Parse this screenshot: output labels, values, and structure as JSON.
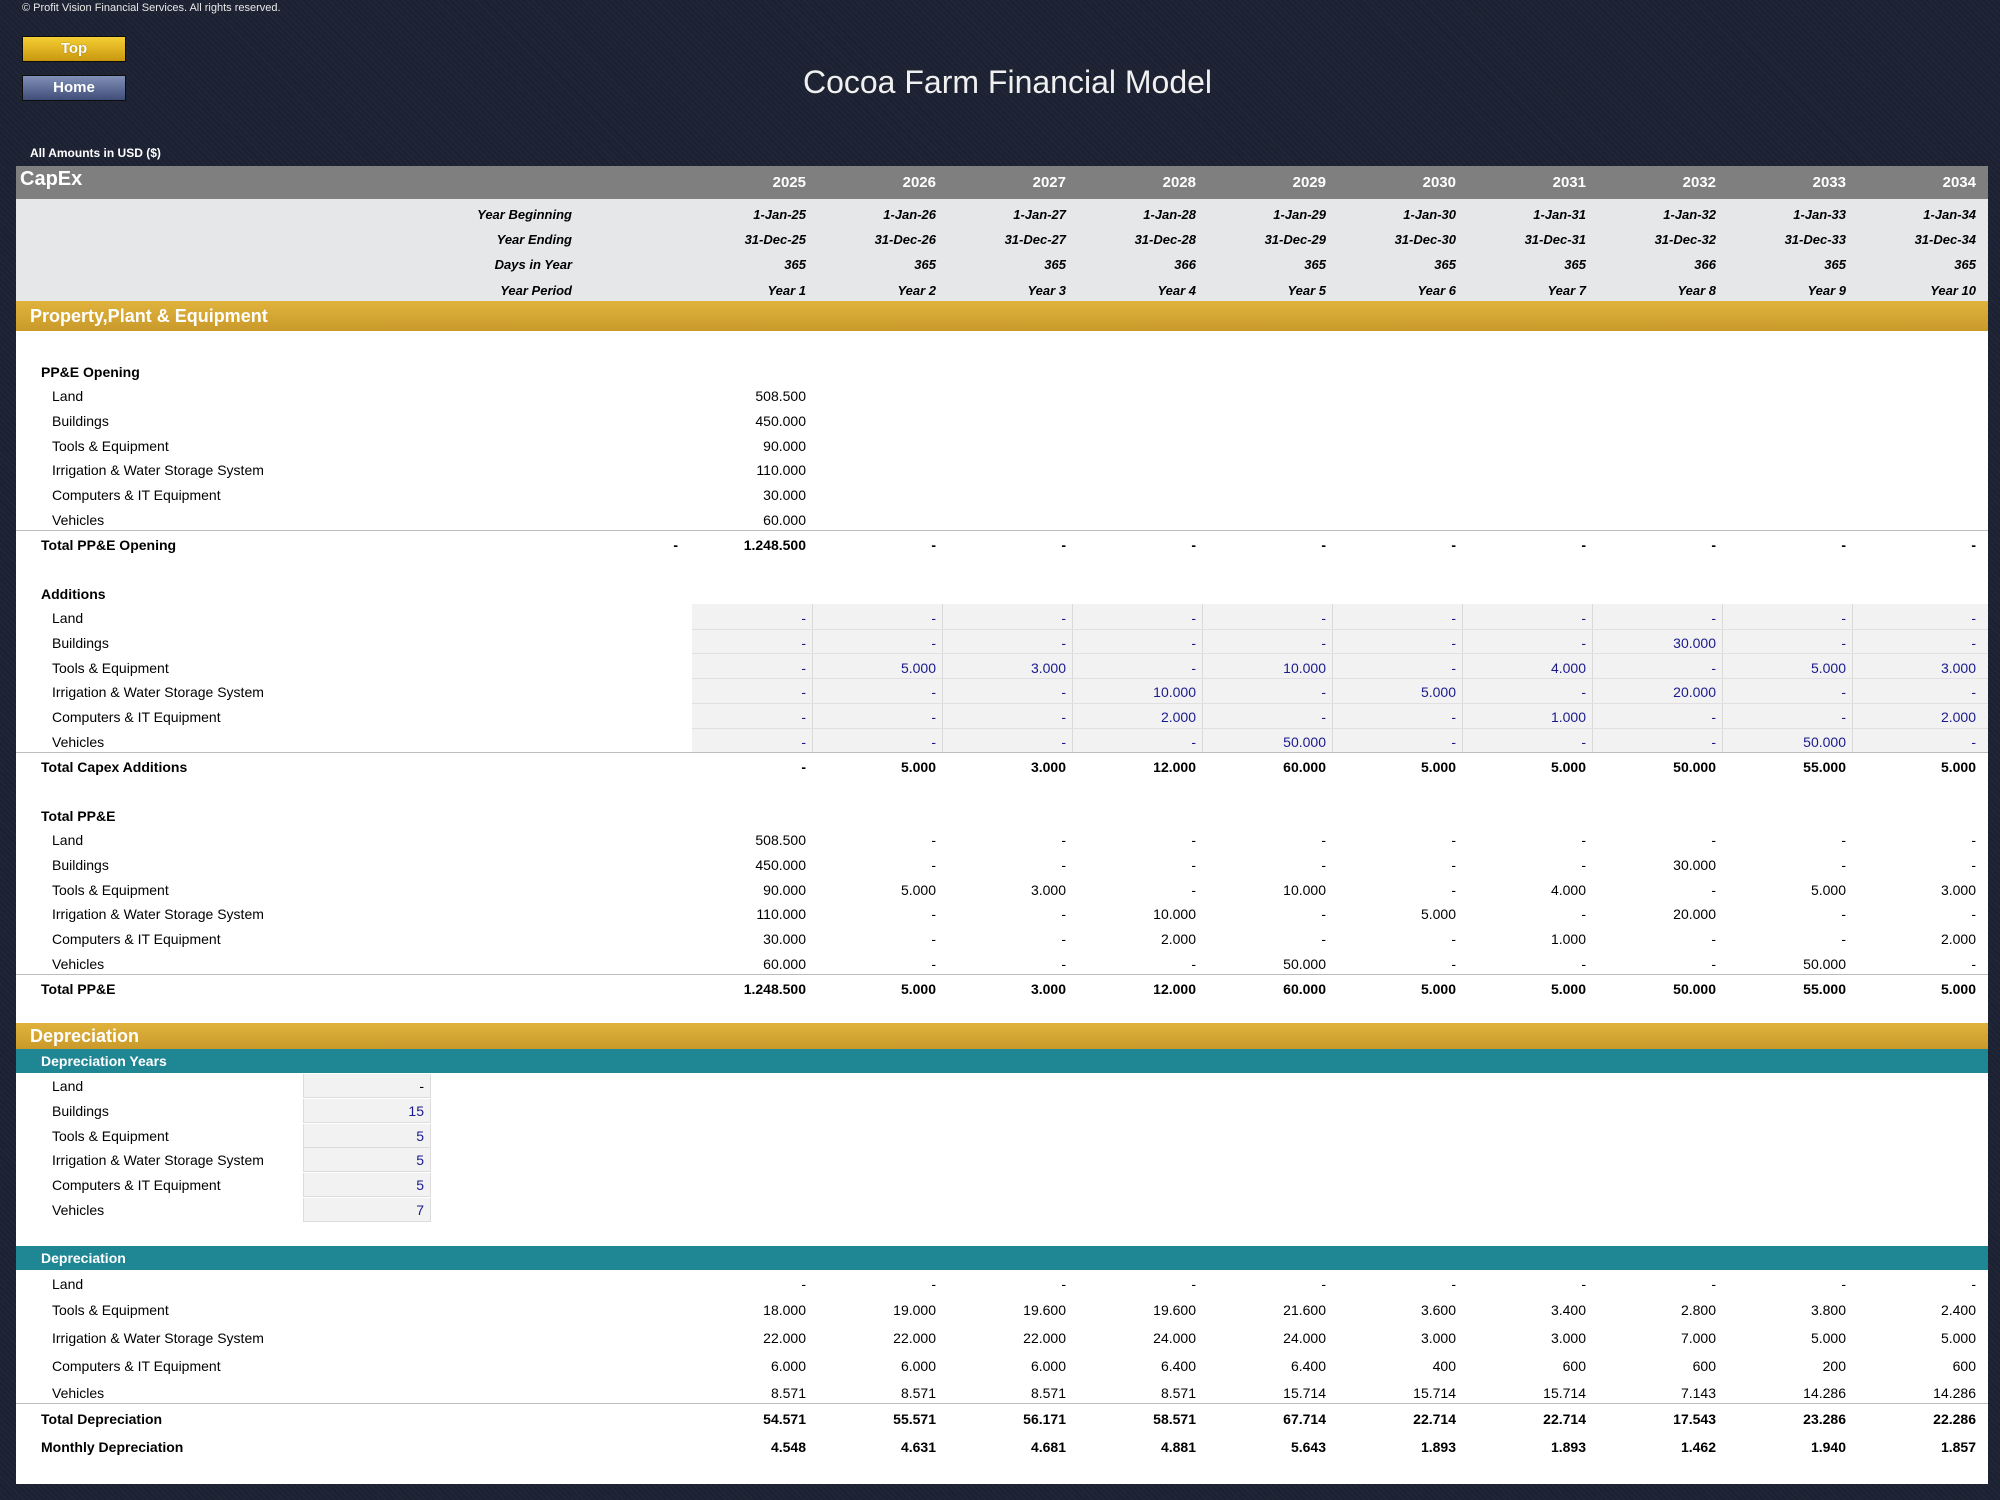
{
  "copyright": "© Profit Vision Financial Services. All rights reserved.",
  "nav": {
    "top_label": "Top",
    "home_label": "Home"
  },
  "title": "Cocoa Farm Financial Model",
  "amounts_note": "All Amounts in  USD ($)",
  "header": {
    "sheet_name": "CapEx",
    "years": [
      "2025",
      "2026",
      "2027",
      "2028",
      "2029",
      "2030",
      "2031",
      "2032",
      "2033",
      "2034"
    ],
    "meta_rows": [
      {
        "label": "Year Beginning",
        "values": [
          "1-Jan-25",
          "1-Jan-26",
          "1-Jan-27",
          "1-Jan-28",
          "1-Jan-29",
          "1-Jan-30",
          "1-Jan-31",
          "1-Jan-32",
          "1-Jan-33",
          "1-Jan-34"
        ]
      },
      {
        "label": "Year Ending",
        "values": [
          "31-Dec-25",
          "31-Dec-26",
          "31-Dec-27",
          "31-Dec-28",
          "31-Dec-29",
          "31-Dec-30",
          "31-Dec-31",
          "31-Dec-32",
          "31-Dec-33",
          "31-Dec-34"
        ]
      },
      {
        "label": "Days in Year",
        "values": [
          "365",
          "365",
          "365",
          "366",
          "365",
          "365",
          "365",
          "366",
          "365",
          "365"
        ]
      },
      {
        "label": "Year Period",
        "values": [
          "Year 1",
          "Year 2",
          "Year 3",
          "Year 4",
          "Year 5",
          "Year 6",
          "Year 7",
          "Year 8",
          "Year 9",
          "Year 10"
        ]
      }
    ]
  },
  "ppe": {
    "section_title": "Property,Plant & Equipment",
    "opening": {
      "title": "PP&E Opening",
      "rows": [
        {
          "label": "Land",
          "value": "508.500"
        },
        {
          "label": "Buildings",
          "value": "450.000"
        },
        {
          "label": "Tools & Equipment",
          "value": "90.000"
        },
        {
          "label": "Irrigation & Water Storage System",
          "value": "110.000"
        },
        {
          "label": "Computers & IT Equipment",
          "value": "30.000"
        },
        {
          "label": "Vehicles",
          "value": "60.000"
        }
      ],
      "total": {
        "label": "Total PP&E Opening",
        "pre": "-",
        "values": [
          "1.248.500",
          "-",
          "-",
          "-",
          "-",
          "-",
          "-",
          "-",
          "-",
          "-"
        ]
      }
    },
    "additions": {
      "title": "Additions",
      "rows": [
        {
          "label": "Land",
          "values": [
            "-",
            "-",
            "-",
            "-",
            "-",
            "-",
            "-",
            "-",
            "-",
            "-"
          ]
        },
        {
          "label": "Buildings",
          "values": [
            "-",
            "-",
            "-",
            "-",
            "-",
            "-",
            "-",
            "30.000",
            "-",
            "-"
          ]
        },
        {
          "label": "Tools & Equipment",
          "values": [
            "-",
            "5.000",
            "3.000",
            "-",
            "10.000",
            "-",
            "4.000",
            "-",
            "5.000",
            "3.000"
          ]
        },
        {
          "label": "Irrigation & Water Storage System",
          "values": [
            "-",
            "-",
            "-",
            "10.000",
            "-",
            "5.000",
            "-",
            "20.000",
            "-",
            "-"
          ]
        },
        {
          "label": "Computers & IT Equipment",
          "values": [
            "-",
            "-",
            "-",
            "2.000",
            "-",
            "-",
            "1.000",
            "-",
            "-",
            "2.000"
          ]
        },
        {
          "label": "Vehicles",
          "values": [
            "-",
            "-",
            "-",
            "-",
            "50.000",
            "-",
            "-",
            "-",
            "50.000",
            "-"
          ]
        }
      ],
      "total": {
        "label": "Total Capex Additions",
        "values": [
          "-",
          "5.000",
          "3.000",
          "12.000",
          "60.000",
          "5.000",
          "5.000",
          "50.000",
          "55.000",
          "5.000"
        ]
      }
    },
    "total_ppe": {
      "title": "Total PP&E",
      "rows": [
        {
          "label": "Land",
          "values": [
            "508.500",
            "-",
            "-",
            "-",
            "-",
            "-",
            "-",
            "-",
            "-",
            "-"
          ]
        },
        {
          "label": "Buildings",
          "values": [
            "450.000",
            "-",
            "-",
            "-",
            "-",
            "-",
            "-",
            "30.000",
            "-",
            "-"
          ]
        },
        {
          "label": "Tools & Equipment",
          "values": [
            "90.000",
            "5.000",
            "3.000",
            "-",
            "10.000",
            "-",
            "4.000",
            "-",
            "5.000",
            "3.000"
          ]
        },
        {
          "label": "Irrigation & Water Storage System",
          "values": [
            "110.000",
            "-",
            "-",
            "10.000",
            "-",
            "5.000",
            "-",
            "20.000",
            "-",
            "-"
          ]
        },
        {
          "label": "Computers & IT Equipment",
          "values": [
            "30.000",
            "-",
            "-",
            "2.000",
            "-",
            "-",
            "1.000",
            "-",
            "-",
            "2.000"
          ]
        },
        {
          "label": "Vehicles",
          "values": [
            "60.000",
            "-",
            "-",
            "-",
            "50.000",
            "-",
            "-",
            "-",
            "50.000",
            "-"
          ]
        }
      ],
      "total": {
        "label": "Total PP&E",
        "values": [
          "1.248.500",
          "5.000",
          "3.000",
          "12.000",
          "60.000",
          "5.000",
          "5.000",
          "50.000",
          "55.000",
          "5.000"
        ]
      }
    }
  },
  "depreciation": {
    "section_title": "Depreciation",
    "years_title": "Depreciation Years",
    "years_rows": [
      {
        "label": "Land",
        "value": "-"
      },
      {
        "label": "Buildings",
        "value": "15"
      },
      {
        "label": "Tools & Equipment",
        "value": "5"
      },
      {
        "label": "Irrigation & Water Storage System",
        "value": "5"
      },
      {
        "label": "Computers & IT Equipment",
        "value": "5"
      },
      {
        "label": "Vehicles",
        "value": "7"
      }
    ],
    "dep_title": "Depreciation",
    "dep_rows": [
      {
        "label": "Land",
        "values": [
          "-",
          "-",
          "-",
          "-",
          "-",
          "-",
          "-",
          "-",
          "-",
          "-"
        ]
      },
      {
        "label": "Tools & Equipment",
        "values": [
          "18.000",
          "19.000",
          "19.600",
          "19.600",
          "21.600",
          "3.600",
          "3.400",
          "2.800",
          "3.800",
          "2.400"
        ]
      },
      {
        "label": "Irrigation & Water Storage System",
        "values": [
          "22.000",
          "22.000",
          "22.000",
          "24.000",
          "24.000",
          "3.000",
          "3.000",
          "7.000",
          "5.000",
          "5.000"
        ]
      },
      {
        "label": "Computers & IT Equipment",
        "values": [
          "6.000",
          "6.000",
          "6.000",
          "6.400",
          "6.400",
          "400",
          "600",
          "600",
          "200",
          "600"
        ]
      },
      {
        "label": "Vehicles",
        "values": [
          "8.571",
          "8.571",
          "8.571",
          "8.571",
          "15.714",
          "15.714",
          "15.714",
          "7.143",
          "14.286",
          "14.286"
        ]
      }
    ],
    "total": {
      "label": "Total Depreciation",
      "values": [
        "54.571",
        "55.571",
        "56.171",
        "58.571",
        "67.714",
        "22.714",
        "22.714",
        "17.543",
        "23.286",
        "22.286"
      ]
    },
    "monthly": {
      "label": "Monthly Depreciation",
      "values": [
        "4.548",
        "4.631",
        "4.681",
        "4.881",
        "5.643",
        "1.893",
        "1.893",
        "1.462",
        "1.940",
        "1.857"
      ]
    }
  }
}
